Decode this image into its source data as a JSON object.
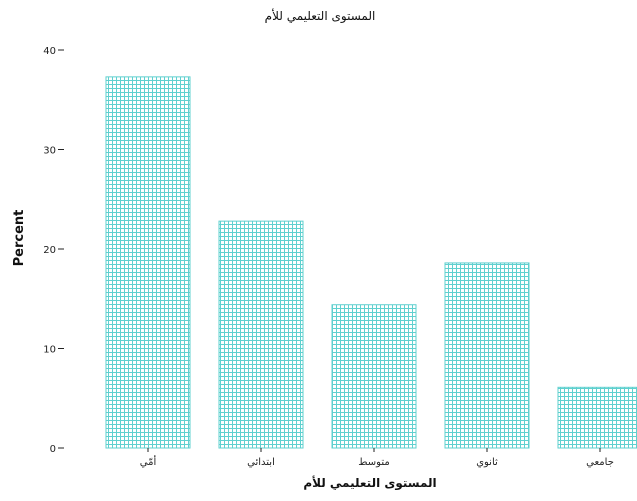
{
  "chart_data": {
    "type": "bar",
    "title": "المستوى التعليمي للأم",
    "xlabel": "المستوى التعليمي للأم",
    "ylabel": "Percent",
    "categories": [
      "أمّي",
      "ابتدائي",
      "متوسط",
      "ثانوي",
      "جامعي"
    ],
    "values": [
      37.3,
      22.8,
      14.4,
      18.6,
      6.1
    ],
    "ylim": [
      0,
      40
    ],
    "yticks": [
      0,
      10,
      20,
      30,
      40
    ],
    "grid": false,
    "legend": "none",
    "bar_color": "#5fd0cf",
    "bar_fill": "cross-hatch"
  }
}
